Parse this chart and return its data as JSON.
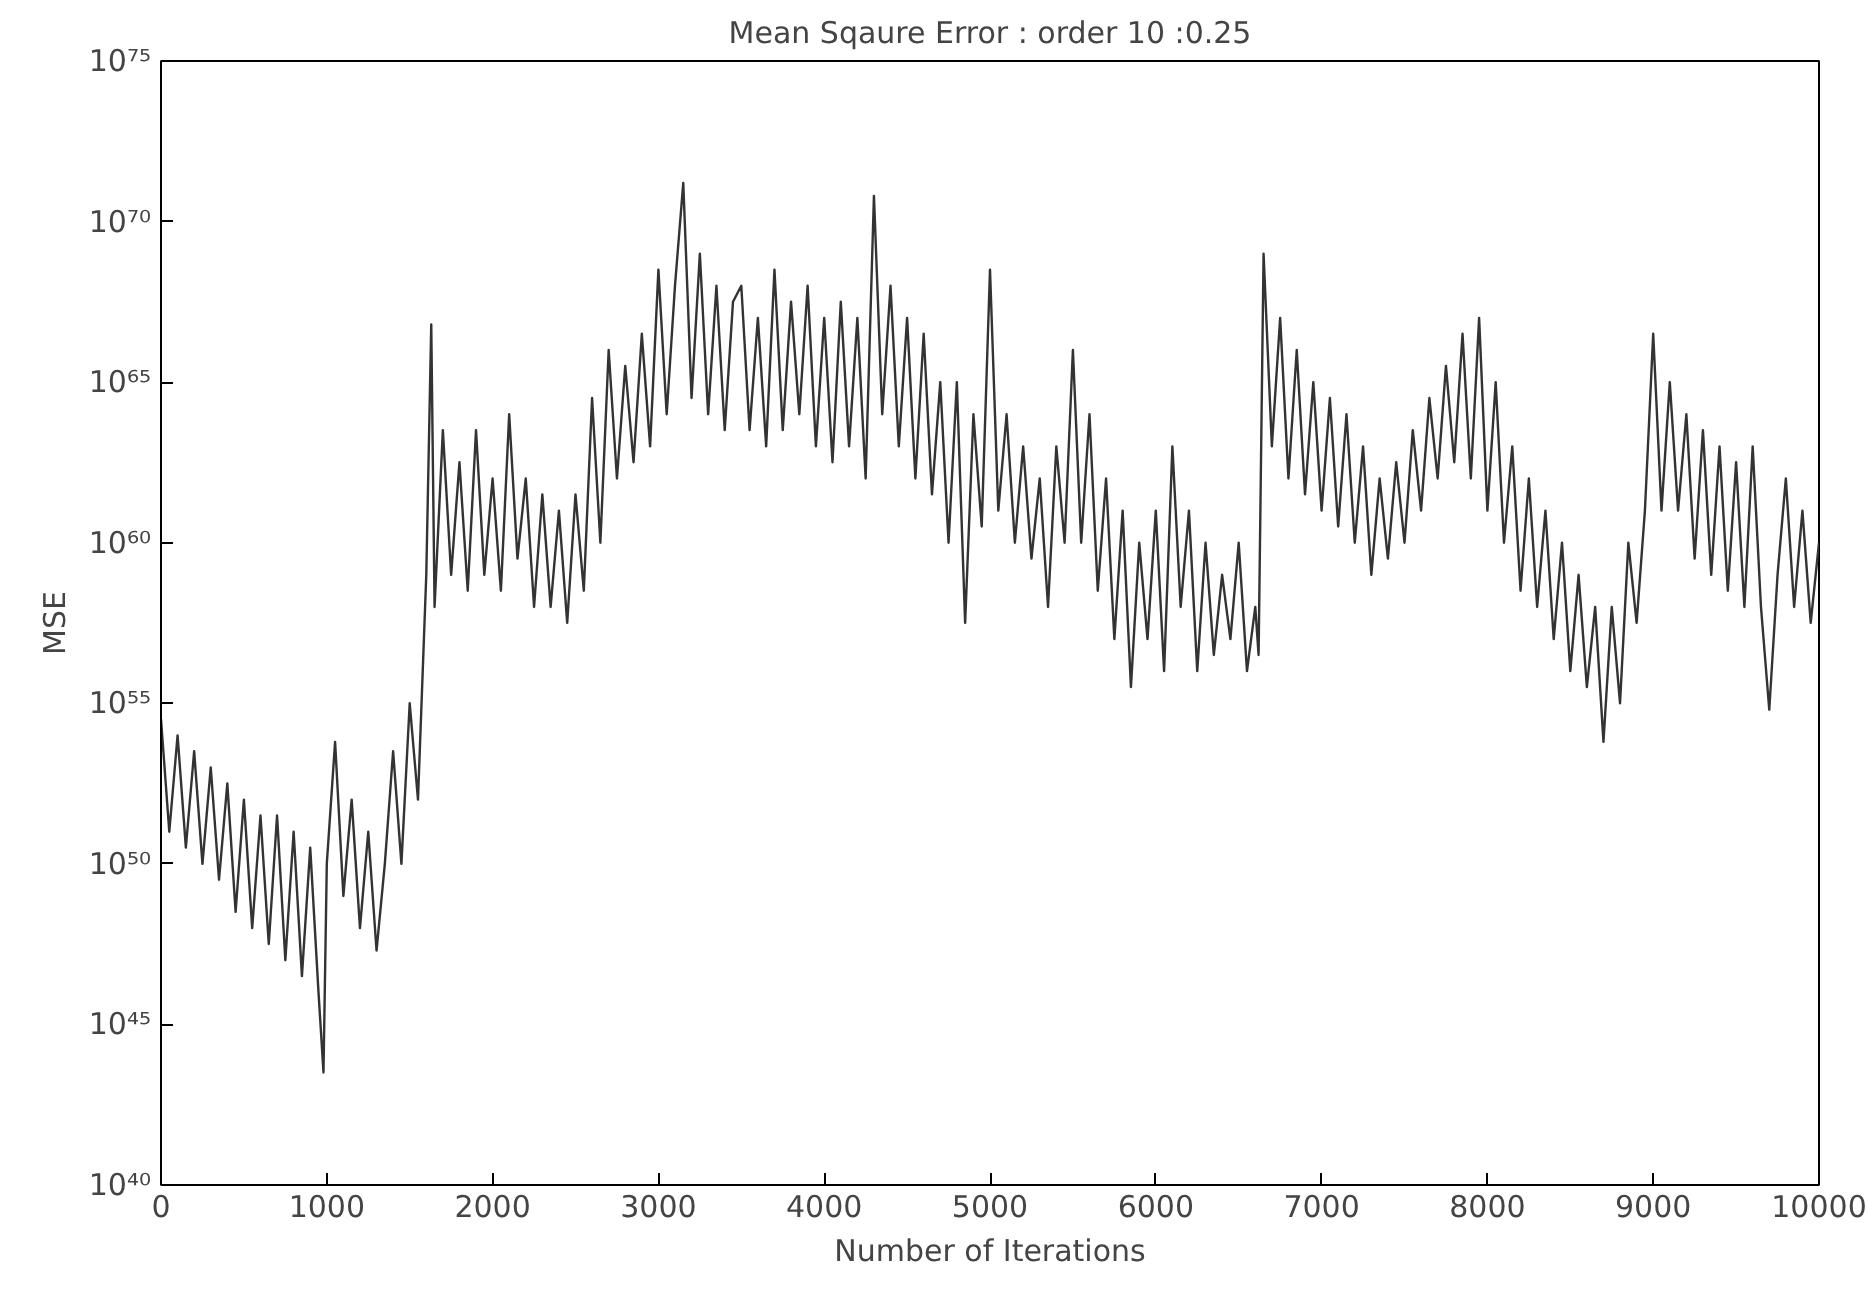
{
  "chart_data": {
    "type": "line",
    "title": "Mean Sqaure Error : order 10 :0.25",
    "xlabel": "Number of Iterations",
    "ylabel": "MSE",
    "x": [
      0,
      50,
      100,
      150,
      200,
      250,
      300,
      350,
      400,
      450,
      500,
      550,
      600,
      650,
      700,
      750,
      800,
      850,
      900,
      950,
      980,
      1000,
      1050,
      1100,
      1150,
      1200,
      1250,
      1300,
      1350,
      1400,
      1450,
      1500,
      1550,
      1600,
      1630,
      1650,
      1700,
      1750,
      1800,
      1850,
      1900,
      1950,
      2000,
      2050,
      2100,
      2150,
      2200,
      2250,
      2300,
      2350,
      2400,
      2450,
      2500,
      2550,
      2600,
      2650,
      2700,
      2750,
      2800,
      2850,
      2900,
      2950,
      3000,
      3050,
      3100,
      3150,
      3200,
      3250,
      3300,
      3350,
      3400,
      3450,
      3500,
      3550,
      3600,
      3650,
      3700,
      3750,
      3800,
      3850,
      3900,
      3950,
      4000,
      4050,
      4100,
      4150,
      4200,
      4250,
      4300,
      4350,
      4400,
      4450,
      4500,
      4550,
      4600,
      4650,
      4700,
      4750,
      4800,
      4850,
      4900,
      4950,
      5000,
      5050,
      5100,
      5150,
      5200,
      5250,
      5300,
      5350,
      5400,
      5450,
      5500,
      5550,
      5600,
      5650,
      5700,
      5750,
      5800,
      5850,
      5900,
      5950,
      6000,
      6050,
      6100,
      6150,
      6200,
      6250,
      6300,
      6350,
      6400,
      6450,
      6500,
      6550,
      6600,
      6620,
      6650,
      6700,
      6750,
      6800,
      6850,
      6900,
      6950,
      7000,
      7050,
      7100,
      7150,
      7200,
      7250,
      7300,
      7350,
      7400,
      7450,
      7500,
      7550,
      7600,
      7650,
      7700,
      7750,
      7800,
      7850,
      7900,
      7950,
      8000,
      8050,
      8100,
      8150,
      8200,
      8250,
      8300,
      8350,
      8400,
      8450,
      8500,
      8550,
      8600,
      8650,
      8700,
      8750,
      8800,
      8850,
      8900,
      8950,
      9000,
      9050,
      9100,
      9150,
      9200,
      9250,
      9300,
      9350,
      9400,
      9450,
      9500,
      9550,
      9600,
      9650,
      9700,
      9750,
      9800,
      9850,
      9900,
      9950,
      10000
    ],
    "series": [
      {
        "color": "#333333",
        "values": [
          3.2e+54,
          1e+51,
          1e+54,
          3.2e+50,
          3.2e+53,
          1e+50,
          1e+53,
          3.2e+49,
          3.2e+52,
          3.2e+48,
          1e+52,
          1e+48,
          3.2e+51,
          3.2e+47,
          3.2e+51,
          1e+47,
          1e+51,
          3.2e+46,
          3.2e+50,
          1e+46,
          3.2e+43,
          1e+50,
          6.3e+53,
          1e+49,
          1e+52,
          1e+48,
          1e+51,
          2e+47,
          1e+50,
          3.2e+53,
          1e+50,
          1e+55,
          1e+52,
          1e+59,
          6.3e+66,
          1e+58,
          3.2e+63,
          1e+59,
          3.2e+62,
          3.2e+58,
          3.2e+63,
          1e+59,
          1e+62,
          3.2e+58,
          1e+64,
          3.2e+59,
          1e+62,
          1e+58,
          3.2e+61,
          1e+58,
          1e+61,
          3.2e+57,
          3.2e+61,
          3.2e+58,
          3.2e+64,
          1e+60,
          1e+66,
          1e+62,
          3.2e+65,
          3.2e+62,
          3.2e+66,
          1e+63,
          3.2e+68,
          1e+64,
          1e+68,
          1.6e+71,
          3.2e+64,
          1e+69,
          1e+64,
          1e+68,
          3.2e+63,
          3.2e+67,
          1e+68,
          3.2e+63,
          1e+67,
          1e+63,
          3.2e+68,
          3.2e+63,
          3.2e+67,
          1e+64,
          1e+68,
          1e+63,
          1e+67,
          3.2e+62,
          3.2e+67,
          1e+63,
          1e+67,
          1e+62,
          6.3e+70,
          1e+64,
          1e+68,
          1e+63,
          1e+67,
          1e+62,
          3.2e+66,
          3.2e+61,
          1e+65,
          1e+60,
          1e+65,
          3.2e+57,
          1e+64,
          3.2e+60,
          3.2e+68,
          1e+61,
          1e+64,
          1e+60,
          1e+63,
          3.2e+59,
          1e+62,
          1e+58,
          1e+63,
          1e+60,
          1e+66,
          1e+60,
          1e+64,
          3.2e+58,
          1e+62,
          1e+57,
          1e+61,
          3.2e+55,
          1e+60,
          1e+57,
          1e+61,
          1e+56,
          1e+63,
          1e+58,
          1e+61,
          1e+56,
          1e+60,
          3.2e+56,
          1e+59,
          1e+57,
          1e+60,
          1e+56,
          1e+58,
          3.2e+56,
          1e+69,
          1e+63,
          1e+67,
          1e+62,
          1e+66,
          3.2e+61,
          1e+65,
          1e+61,
          3.2e+64,
          3.2e+60,
          1e+64,
          1e+60,
          1e+63,
          1e+59,
          1e+62,
          3.2e+59,
          3.2e+62,
          1e+60,
          3.2e+63,
          1e+61,
          3.2e+64,
          1e+62,
          3.2e+65,
          3.2e+62,
          3.2e+66,
          1e+62,
          1e+67,
          1e+61,
          1e+65,
          1e+60,
          1e+63,
          3.2e+58,
          1e+62,
          1e+58,
          1e+61,
          1e+57,
          1e+60,
          1e+56,
          1e+59,
          3.2e+55,
          1e+58,
          6.3e+53,
          1e+58,
          1e+55,
          1e+60,
          3.2e+57,
          1e+61,
          3.2e+66,
          1e+61,
          1e+65,
          1e+61,
          1e+64,
          3.2e+59,
          3.2e+63,
          1e+59,
          1e+63,
          3.2e+58,
          3.2e+62,
          1e+58,
          1e+63,
          1e+58,
          6.3e+54,
          1e+59,
          1e+62,
          1e+58,
          1e+61,
          3.2e+57,
          1e+60
        ]
      }
    ],
    "xlim": [
      0,
      10000
    ],
    "ylim": [
      1e+40,
      1e+75
    ],
    "log": true,
    "grid": false,
    "marker": "none",
    "line_style": "solid",
    "xticks": [
      0,
      1000,
      2000,
      3000,
      4000,
      5000,
      6000,
      7000,
      8000,
      9000,
      10000
    ],
    "yticks": [
      {
        "value": 1e+40,
        "label": "10⁴⁰"
      },
      {
        "value": 1e+45,
        "label": "10⁴⁵"
      },
      {
        "value": 1e+50,
        "label": "10⁵⁰"
      },
      {
        "value": 1e+55,
        "label": "10⁵⁵"
      },
      {
        "value": 1e+60,
        "label": "10⁶⁰"
      },
      {
        "value": 1e+65,
        "label": "10⁶⁵"
      },
      {
        "value": 1e+70,
        "label": "10⁷⁰"
      },
      {
        "value": 1e+75,
        "label": "10⁷⁵"
      }
    ]
  }
}
